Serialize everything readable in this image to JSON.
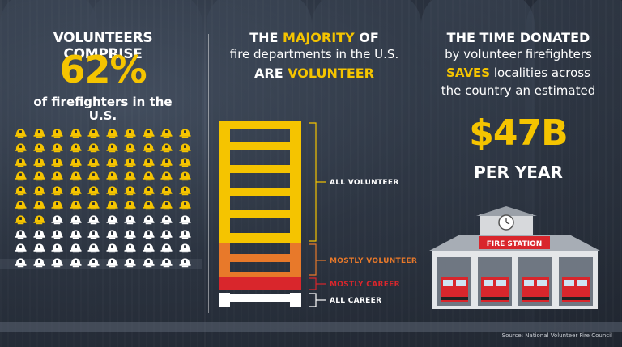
{
  "column1": {
    "title": "VOLUNTEERS COMPRISE",
    "percent": "62%",
    "subtitle": "of firefighters in the U.S.",
    "helmet_total": 100,
    "helmet_volunteer": 62,
    "volunteer_color": "#f5c400",
    "career_color": "#ffffff"
  },
  "column2": {
    "line1_prefix": "THE ",
    "line1_highlight": "MAJORITY",
    "line1_suffix": " OF",
    "line2": "fire departments in the U.S.",
    "line3_prefix": "ARE ",
    "line3_highlight": "VOLUNTEER",
    "ladder_sections": [
      {
        "label": "ALL VOLUNTEER",
        "color": "#f5c400"
      },
      {
        "label": "MOSTLY VOLUNTEER",
        "color": "#e8792a"
      },
      {
        "label": "MOSTLY CAREER",
        "color": "#d9262c"
      },
      {
        "label": "ALL CAREER",
        "color": "#ffffff"
      }
    ]
  },
  "column3": {
    "line1": "THE TIME DONATED",
    "line2": "by volunteer firefighters",
    "line3_highlight": "SAVES",
    "line3_suffix": " localities across",
    "line4": "the country an estimated",
    "amount": "$47B",
    "per": "PER YEAR",
    "station_sign": "FIRE STATION"
  },
  "source": "Source: National Volunteer Fire Council"
}
